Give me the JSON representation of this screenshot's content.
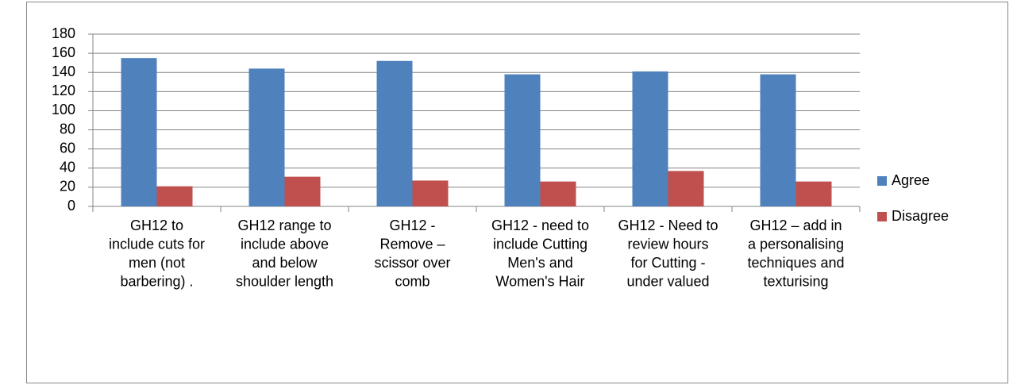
{
  "chart_data": {
    "type": "bar",
    "categories": [
      "GH12 to include cuts for men (not barbering) .",
      "GH12 range to include above and below shoulder length",
      "GH12 - Remove – scissor over comb",
      "GH12 - need to include Cutting Men's and Women's Hair",
      "GH12 - Need to review hours for Cutting - under valued",
      "GH12 – add in a personalising techniques and texturising"
    ],
    "series": [
      {
        "name": "Agree",
        "color": "#4f81bd",
        "values": [
          155,
          144,
          152,
          138,
          141,
          138
        ]
      },
      {
        "name": "Disagree",
        "color": "#c0504d",
        "values": [
          21,
          31,
          27,
          26,
          37,
          26
        ]
      }
    ],
    "ylim": [
      0,
      180
    ],
    "yticks": [
      0,
      20,
      40,
      60,
      80,
      100,
      120,
      140,
      160,
      180
    ],
    "grid": true,
    "legend": "right"
  }
}
